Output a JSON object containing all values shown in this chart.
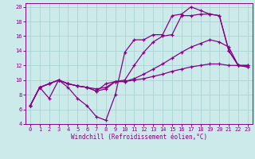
{
  "xlabel": "Windchill (Refroidissement éolien,°C)",
  "bg_color": "#cceaea",
  "grid_color": "#aad4d4",
  "line_color": "#880088",
  "xlim": [
    -0.5,
    23.5
  ],
  "ylim": [
    4,
    20.5
  ],
  "xticks": [
    0,
    1,
    2,
    3,
    4,
    5,
    6,
    7,
    8,
    9,
    10,
    11,
    12,
    13,
    14,
    15,
    16,
    17,
    18,
    19,
    20,
    21,
    22,
    23
  ],
  "yticks": [
    4,
    6,
    8,
    10,
    12,
    14,
    16,
    18,
    20
  ],
  "lines": [
    {
      "x": [
        0,
        1,
        2,
        3,
        4,
        5,
        6,
        7,
        8,
        9,
        10,
        11,
        12,
        13,
        14,
        15,
        16,
        17,
        18,
        19,
        20,
        21,
        22,
        23
      ],
      "y": [
        6.5,
        9.0,
        7.5,
        10.0,
        9.0,
        7.5,
        6.5,
        5.0,
        4.5,
        8.0,
        13.8,
        15.5,
        15.5,
        16.2,
        16.2,
        18.8,
        19.0,
        20.0,
        19.5,
        19.0,
        18.8,
        14.0,
        12.0,
        12.0
      ]
    },
    {
      "x": [
        0,
        1,
        2,
        3,
        4,
        5,
        6,
        7,
        8,
        9,
        10,
        11,
        12,
        13,
        14,
        15,
        16,
        17,
        18,
        19,
        20,
        21,
        22,
        23
      ],
      "y": [
        6.5,
        9.0,
        9.5,
        10.0,
        9.5,
        9.2,
        9.0,
        8.5,
        9.5,
        9.8,
        10.0,
        12.0,
        13.8,
        15.2,
        16.0,
        16.2,
        18.8,
        18.8,
        19.0,
        19.0,
        18.8,
        14.0,
        12.0,
        12.0
      ]
    },
    {
      "x": [
        0,
        1,
        2,
        3,
        4,
        5,
        6,
        7,
        8,
        9,
        10,
        11,
        12,
        13,
        14,
        15,
        16,
        17,
        18,
        19,
        20,
        21,
        22,
        23
      ],
      "y": [
        6.5,
        9.0,
        9.5,
        10.0,
        9.5,
        9.2,
        9.0,
        8.5,
        8.8,
        9.8,
        9.8,
        10.2,
        10.8,
        11.5,
        12.2,
        13.0,
        13.8,
        14.5,
        15.0,
        15.5,
        15.2,
        14.5,
        12.0,
        11.8
      ]
    },
    {
      "x": [
        0,
        1,
        2,
        3,
        4,
        5,
        6,
        7,
        8,
        9,
        10,
        11,
        12,
        13,
        14,
        15,
        16,
        17,
        18,
        19,
        20,
        21,
        22,
        23
      ],
      "y": [
        6.5,
        9.0,
        9.5,
        10.0,
        9.5,
        9.2,
        9.0,
        8.8,
        9.0,
        9.8,
        9.8,
        10.0,
        10.2,
        10.5,
        10.8,
        11.2,
        11.5,
        11.8,
        12.0,
        12.2,
        12.2,
        12.0,
        12.0,
        11.8
      ]
    }
  ]
}
